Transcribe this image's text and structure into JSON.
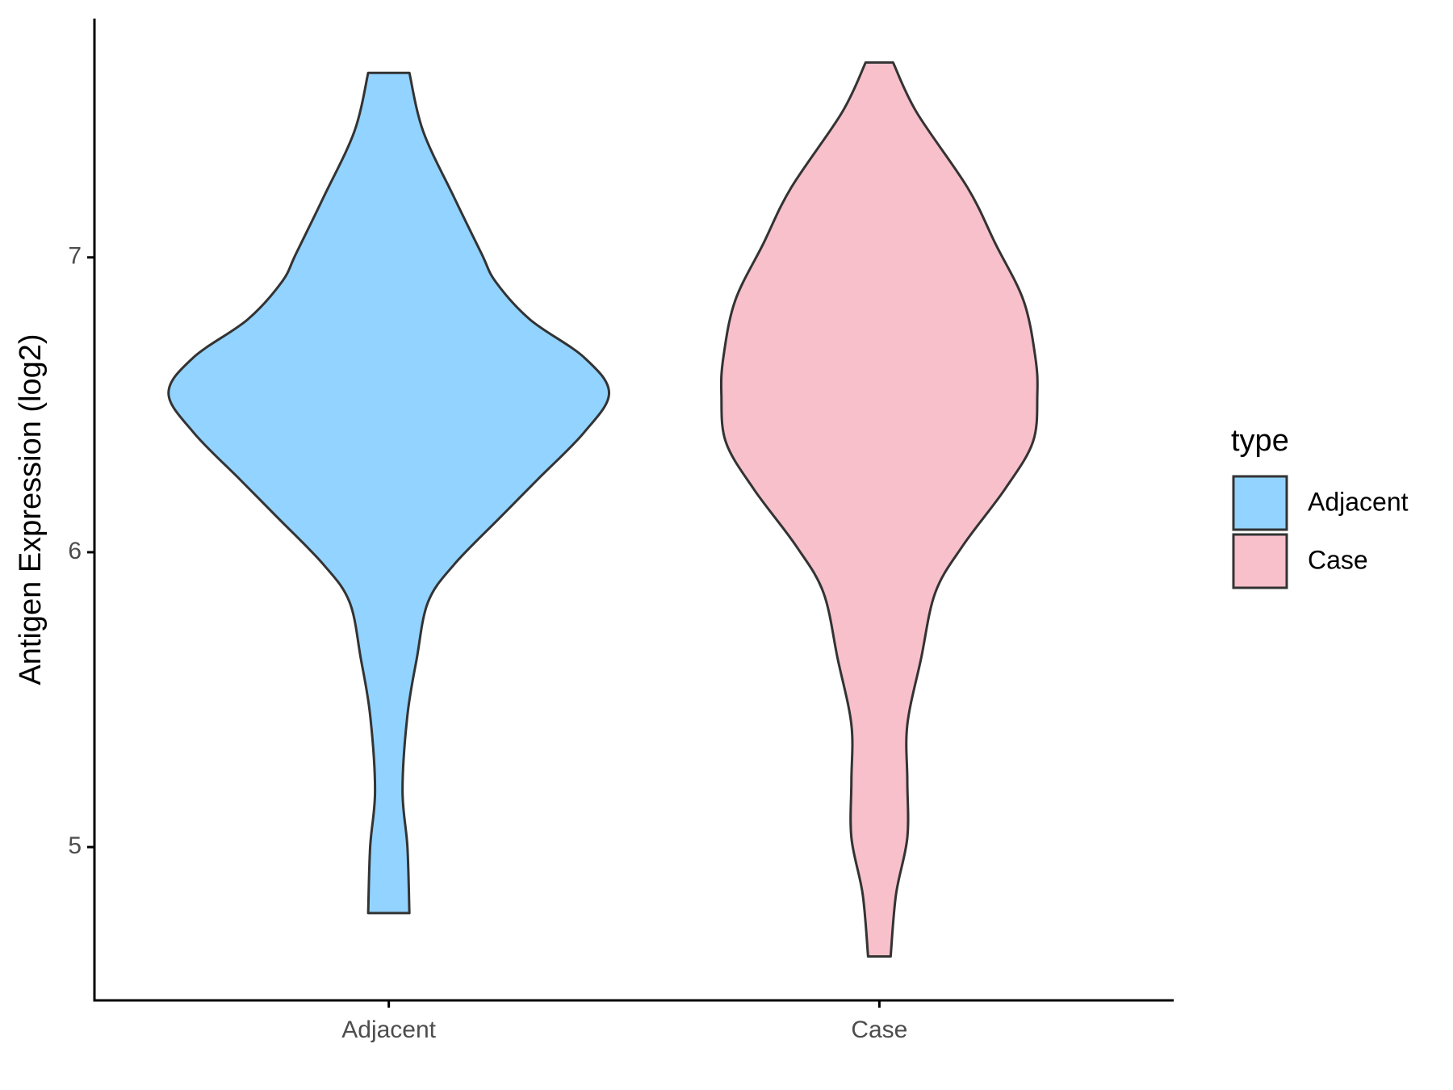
{
  "chart_data": {
    "type": "violin",
    "y_label": "Antigen Expression (log2)",
    "categories": [
      "Adjacent",
      "Case"
    ],
    "ylim": [
      4.48,
      7.81
    ],
    "yticks": [
      5,
      6,
      7
    ],
    "legend_title": "type",
    "legend": "right",
    "series": [
      {
        "name": "Adjacent",
        "color": "#92d3ff",
        "y": [
          7.626,
          7.428,
          7.204,
          7.013,
          6.917,
          6.789,
          6.661,
          6.54,
          6.406,
          6.246,
          6.118,
          5.958,
          5.831,
          5.639,
          5.447,
          5.192,
          5.0,
          4.776
        ],
        "half_width": [
          0.042,
          0.07,
          0.133,
          0.189,
          0.218,
          0.288,
          0.398,
          0.449,
          0.398,
          0.303,
          0.227,
          0.133,
          0.08,
          0.057,
          0.038,
          0.028,
          0.038,
          0.042
        ]
      },
      {
        "name": "Case",
        "color": "#f7c0cb",
        "y": [
          7.661,
          7.492,
          7.236,
          7.045,
          6.853,
          6.661,
          6.534,
          6.374,
          6.214,
          6.022,
          5.863,
          5.639,
          5.415,
          5.224,
          5.032,
          4.84,
          4.629
        ],
        "half_width": [
          0.028,
          0.076,
          0.18,
          0.237,
          0.294,
          0.318,
          0.322,
          0.313,
          0.256,
          0.17,
          0.114,
          0.085,
          0.057,
          0.057,
          0.057,
          0.034,
          0.023
        ]
      }
    ]
  }
}
